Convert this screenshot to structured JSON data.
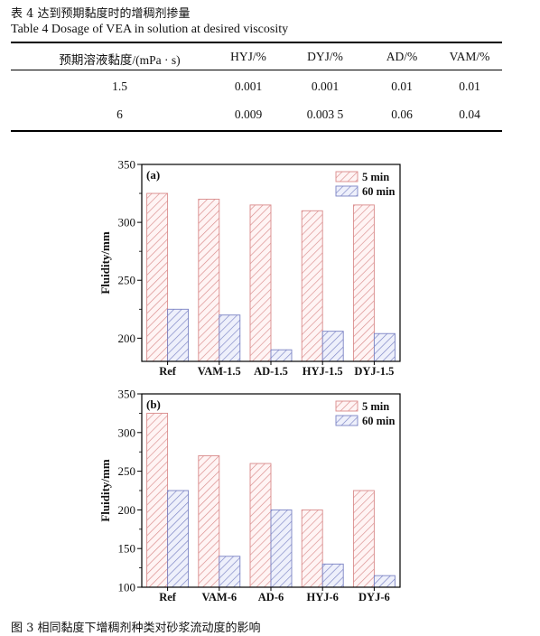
{
  "table": {
    "caption_cn": "表 4   达到预期黏度时的增稠剂掺量",
    "caption_en": "Table 4   Dosage of VEA in solution at desired viscosity",
    "headers": [
      "预期溶液黏度/(mPa · s)",
      "HYJ/%",
      "DYJ/%",
      "AD/%",
      "VAM/%"
    ],
    "rows": [
      [
        "1.5",
        "0.001",
        "0.001",
        "0.01",
        "0.01"
      ],
      [
        "6",
        "0.009",
        "0.003 5",
        "0.06",
        "0.04"
      ]
    ]
  },
  "chart_data": [
    {
      "type": "bar",
      "panel_label": "(a)",
      "categories": [
        "Ref",
        "VAM-1.5",
        "AD-1.5",
        "HYJ-1.5",
        "DYJ-1.5"
      ],
      "series": [
        {
          "name": "5 min",
          "values": [
            325,
            320,
            315,
            310,
            315
          ],
          "color": "#d98b8b"
        },
        {
          "name": "60 min",
          "values": [
            225,
            220,
            190,
            206,
            204
          ],
          "color": "#7b83c4"
        }
      ],
      "ylabel": "Fluidity/mm",
      "ylim": [
        180,
        350
      ],
      "yticks": [
        200,
        250,
        300,
        350
      ],
      "legend": "top-right"
    },
    {
      "type": "bar",
      "panel_label": "(b)",
      "categories": [
        "Ref",
        "VAM-6",
        "AD-6",
        "HYJ-6",
        "DYJ-6"
      ],
      "series": [
        {
          "name": "5 min",
          "values": [
            325,
            270,
            260,
            200,
            225
          ],
          "color": "#d98b8b"
        },
        {
          "name": "60 min",
          "values": [
            225,
            140,
            200,
            130,
            115
          ],
          "color": "#7b83c4"
        }
      ],
      "ylabel": "Fluidity/mm",
      "ylim": [
        100,
        350
      ],
      "yticks": [
        100,
        150,
        200,
        250,
        300,
        350
      ],
      "legend": "top-right"
    }
  ],
  "figure_caption": "图 3   相同黏度下增稠剂种类对砂浆流动度的影响"
}
